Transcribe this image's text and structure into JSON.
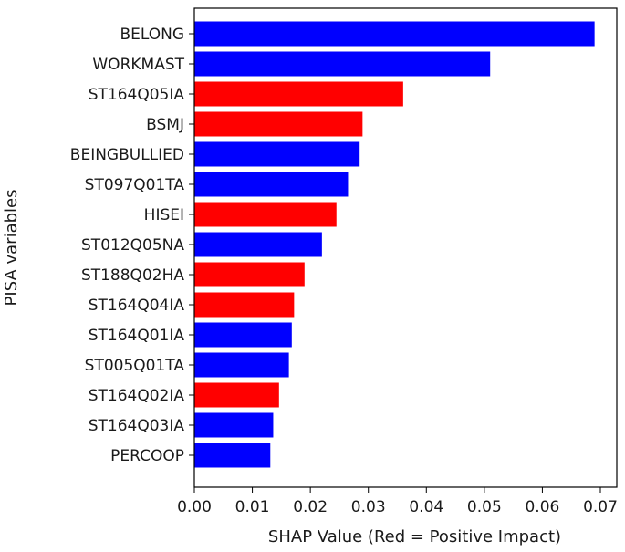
{
  "chart_data": {
    "type": "bar",
    "orientation": "horizontal",
    "categories": [
      "BELONG",
      "WORKMAST",
      "ST164Q05IA",
      "BSMJ",
      "BEINGBULLIED",
      "ST097Q01TA",
      "HISEI",
      "ST012Q05NA",
      "ST188Q02HA",
      "ST164Q04IA",
      "ST164Q01IA",
      "ST005Q01TA",
      "ST164Q02IA",
      "ST164Q03IA",
      "PERCOOP"
    ],
    "values": [
      0.069,
      0.051,
      0.036,
      0.029,
      0.0285,
      0.0265,
      0.0245,
      0.022,
      0.019,
      0.0172,
      0.0168,
      0.0163,
      0.0146,
      0.0136,
      0.0131
    ],
    "impact": [
      "negative",
      "negative",
      "positive",
      "positive",
      "negative",
      "negative",
      "positive",
      "negative",
      "positive",
      "positive",
      "negative",
      "negative",
      "positive",
      "negative",
      "negative"
    ],
    "colors": {
      "positive": "#ff0000",
      "negative": "#0000ff"
    },
    "xlabel": "SHAP Value (Red = Positive Impact)",
    "ylabel": "PISA variables",
    "xlim": [
      0,
      0.07
    ],
    "xticks": [
      "0.00",
      "0.01",
      "0.02",
      "0.03",
      "0.04",
      "0.05",
      "0.06",
      "0.07"
    ],
    "grid": false,
    "legend": "none"
  }
}
